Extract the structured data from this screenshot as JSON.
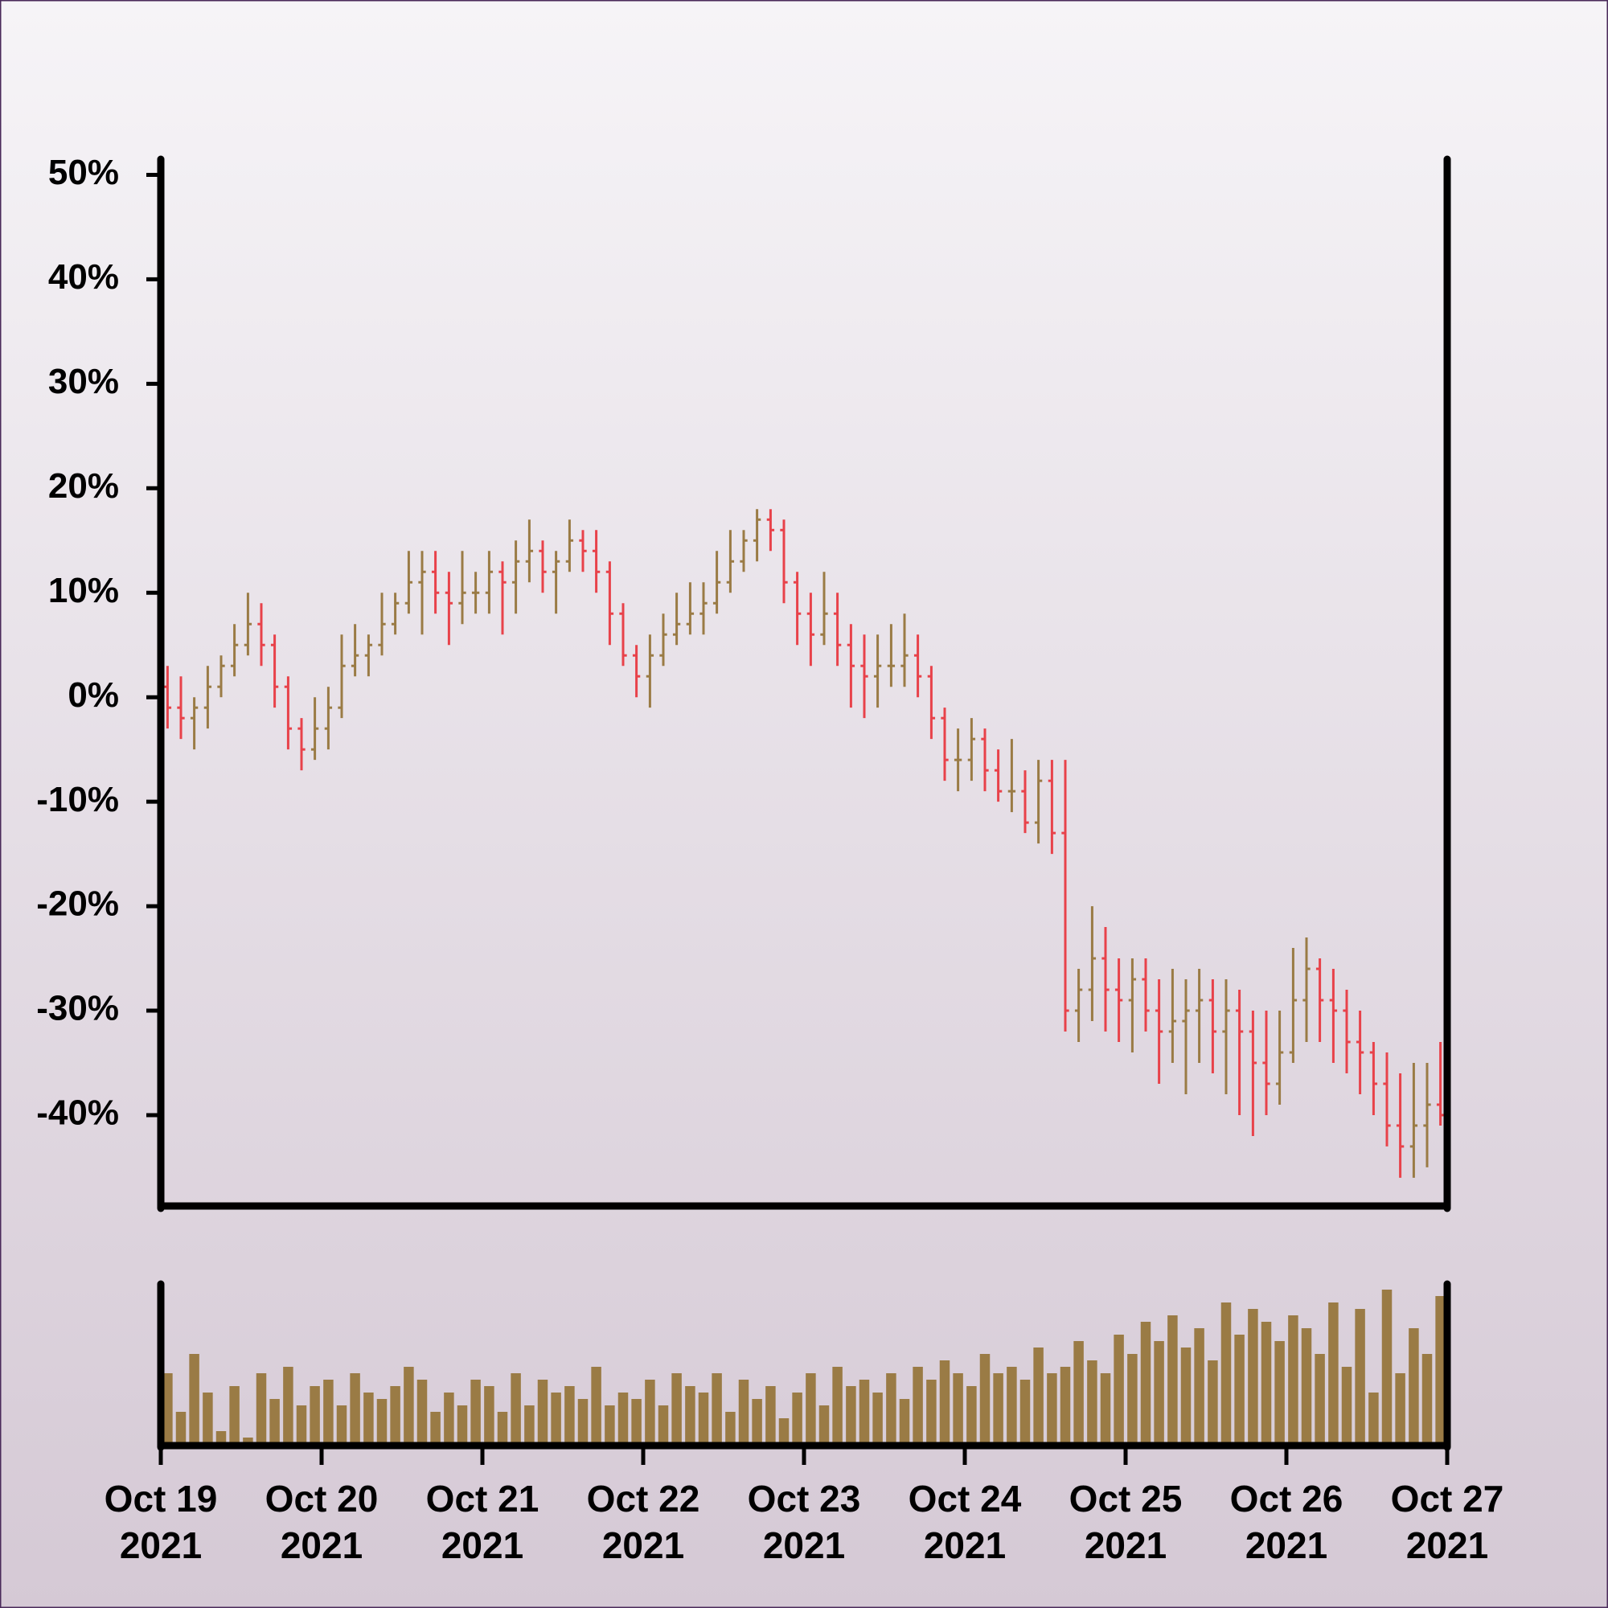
{
  "chart_data": {
    "type": "ohlc",
    "up_color": "#9a7b45",
    "down_color": "#e8424a",
    "volume_color": "#9a7b45",
    "xlim": [
      0,
      8
    ],
    "xticks": [
      {
        "value": 0,
        "label": "Oct 19 2021"
      },
      {
        "value": 1,
        "label": "Oct 20 2021"
      },
      {
        "value": 2,
        "label": "Oct 21 2021"
      },
      {
        "value": 3,
        "label": "Oct 22 2021"
      },
      {
        "value": 4,
        "label": "Oct 23 2021"
      },
      {
        "value": 5,
        "label": "Oct 24 2021"
      },
      {
        "value": 6,
        "label": "Oct 25 2021"
      },
      {
        "value": 7,
        "label": "Oct 26 2021"
      },
      {
        "value": 8,
        "label": "Oct 27 2021"
      }
    ],
    "ylim": [
      -48.7,
      51.5
    ],
    "yticks": [
      {
        "value": 50,
        "label": "50%"
      },
      {
        "value": 40,
        "label": "40%"
      },
      {
        "value": 30,
        "label": "30%"
      },
      {
        "value": 20,
        "label": "20%"
      },
      {
        "value": 10,
        "label": "10%"
      },
      {
        "value": 0,
        "label": "0%"
      },
      {
        "value": -10,
        "label": "-10%"
      },
      {
        "value": -20,
        "label": "-20%"
      },
      {
        "value": -30,
        "label": "-30%"
      },
      {
        "value": -40,
        "label": "-40%"
      }
    ],
    "x": [
      0.042,
      0.125,
      0.208,
      0.292,
      0.375,
      0.458,
      0.542,
      0.625,
      0.708,
      0.792,
      0.875,
      0.958,
      1.042,
      1.125,
      1.208,
      1.292,
      1.375,
      1.458,
      1.542,
      1.625,
      1.708,
      1.792,
      1.875,
      1.958,
      2.042,
      2.125,
      2.208,
      2.292,
      2.375,
      2.458,
      2.542,
      2.625,
      2.708,
      2.792,
      2.875,
      2.958,
      3.042,
      3.125,
      3.208,
      3.292,
      3.375,
      3.458,
      3.542,
      3.625,
      3.708,
      3.792,
      3.875,
      3.958,
      4.042,
      4.125,
      4.208,
      4.292,
      4.375,
      4.458,
      4.542,
      4.625,
      4.708,
      4.792,
      4.875,
      4.958,
      5.042,
      5.125,
      5.208,
      5.292,
      5.375,
      5.458,
      5.542,
      5.625,
      5.708,
      5.792,
      5.875,
      5.958,
      6.042,
      6.125,
      6.208,
      6.292,
      6.375,
      6.458,
      6.542,
      6.625,
      6.708,
      6.792,
      6.875,
      6.958,
      7.042,
      7.125,
      7.208,
      7.292,
      7.375,
      7.458,
      7.542,
      7.625,
      7.708,
      7.792,
      7.875,
      7.958
    ],
    "open": [
      1,
      -1,
      -2,
      -1,
      1,
      3,
      5,
      7,
      5,
      1,
      -3,
      -5,
      -3,
      -1,
      3,
      4,
      5,
      7,
      9,
      11,
      12,
      10,
      9,
      10,
      10,
      12,
      11,
      13,
      14,
      12,
      13,
      15,
      14,
      12,
      8,
      4,
      2,
      4,
      6,
      7,
      8,
      9,
      11,
      13,
      15,
      17,
      16,
      11,
      8,
      6,
      8,
      5,
      3,
      2,
      3,
      3,
      4,
      2,
      -2,
      -6,
      -6,
      -4,
      -7,
      -9,
      -9,
      -12,
      -8,
      -13,
      -30,
      -28,
      -25,
      -28,
      -29,
      -27,
      -30,
      -32,
      -31,
      -30,
      -29,
      -32,
      -30,
      -32,
      -35,
      -37,
      -34,
      -29,
      -26,
      -29,
      -30,
      -33,
      -34,
      -37,
      -41,
      -43,
      -41,
      -39
    ],
    "high": [
      3,
      2,
      0,
      3,
      4,
      7,
      10,
      9,
      6,
      2,
      -2,
      0,
      1,
      6,
      7,
      6,
      10,
      10,
      14,
      14,
      14,
      12,
      14,
      12,
      14,
      13,
      15,
      17,
      15,
      14,
      17,
      16,
      16,
      13,
      9,
      5,
      6,
      8,
      10,
      11,
      11,
      14,
      16,
      16,
      18,
      18,
      17,
      12,
      10,
      12,
      10,
      7,
      6,
      6,
      7,
      8,
      6,
      3,
      -1,
      -3,
      -2,
      -3,
      -5,
      -4,
      -7,
      -6,
      -6,
      -6,
      -26,
      -20,
      -22,
      -25,
      -25,
      -25,
      -27,
      -26,
      -27,
      -26,
      -27,
      -27,
      -28,
      -30,
      -30,
      -30,
      -24,
      -23,
      -25,
      -26,
      -28,
      -30,
      -33,
      -34,
      -36,
      -35,
      -35,
      -33
    ],
    "low": [
      -3,
      -4,
      -5,
      -3,
      0,
      2,
      4,
      3,
      -1,
      -5,
      -7,
      -6,
      -5,
      -2,
      2,
      2,
      4,
      6,
      8,
      6,
      8,
      5,
      7,
      8,
      8,
      6,
      8,
      11,
      10,
      8,
      12,
      12,
      10,
      5,
      3,
      0,
      -1,
      3,
      5,
      6,
      6,
      8,
      10,
      12,
      13,
      14,
      9,
      5,
      3,
      5,
      3,
      -1,
      -2,
      -1,
      1,
      1,
      0,
      -4,
      -8,
      -9,
      -8,
      -9,
      -10,
      -11,
      -13,
      -14,
      -15,
      -32,
      -33,
      -31,
      -32,
      -33,
      -34,
      -32,
      -37,
      -35,
      -38,
      -35,
      -36,
      -38,
      -40,
      -42,
      -40,
      -39,
      -35,
      -33,
      -33,
      -35,
      -36,
      -38,
      -40,
      -43,
      -46,
      -46,
      -45,
      -41
    ],
    "close": [
      -1,
      -2,
      -1,
      1,
      3,
      5,
      7,
      5,
      1,
      -3,
      -5,
      -3,
      -1,
      3,
      4,
      5,
      7,
      9,
      11,
      12,
      10,
      9,
      10,
      10,
      12,
      11,
      13,
      14,
      12,
      13,
      15,
      14,
      12,
      8,
      4,
      2,
      4,
      6,
      7,
      8,
      9,
      11,
      13,
      15,
      17,
      16,
      11,
      8,
      6,
      8,
      5,
      3,
      2,
      3,
      3,
      4,
      2,
      -2,
      -6,
      -6,
      -4,
      -7,
      -9,
      -9,
      -12,
      -8,
      -13,
      -30,
      -28,
      -25,
      -28,
      -29,
      -27,
      -30,
      -32,
      -31,
      -30,
      -29,
      -32,
      -30,
      -32,
      -35,
      -37,
      -34,
      -29,
      -26,
      -29,
      -30,
      -33,
      -34,
      -37,
      -41,
      -43,
      -41,
      -39,
      -40
    ],
    "volume": [
      55,
      25,
      70,
      40,
      10,
      45,
      5,
      55,
      35,
      60,
      30,
      45,
      50,
      30,
      55,
      40,
      35,
      45,
      60,
      50,
      25,
      40,
      30,
      50,
      45,
      25,
      55,
      30,
      50,
      40,
      45,
      35,
      60,
      30,
      40,
      35,
      50,
      30,
      55,
      45,
      40,
      55,
      25,
      50,
      35,
      45,
      20,
      40,
      55,
      30,
      60,
      45,
      50,
      40,
      55,
      35,
      60,
      50,
      65,
      55,
      45,
      70,
      55,
      60,
      50,
      75,
      55,
      60,
      80,
      65,
      55,
      85,
      70,
      95,
      80,
      100,
      75,
      90,
      65,
      110,
      85,
      105,
      95,
      80,
      100,
      90,
      70,
      110,
      60,
      105,
      40,
      120,
      55,
      90,
      70,
      115
    ]
  }
}
